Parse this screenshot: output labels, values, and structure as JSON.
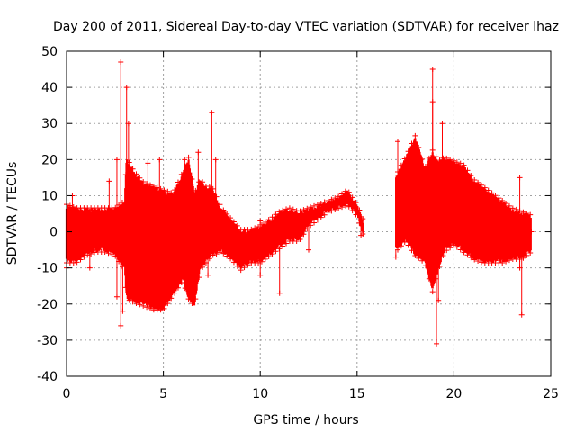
{
  "chart_data": {
    "type": "scatter",
    "title": "Day 200 of 2011, Sidereal Day-to-day VTEC variation (SDTVAR) for receiver lhaz",
    "xlabel": "GPS time / hours",
    "ylabel": "SDTVAR / TECUs",
    "xlim": [
      0,
      25
    ],
    "ylim": [
      -40,
      50
    ],
    "x_ticks": [
      0,
      5,
      10,
      15,
      20,
      25
    ],
    "y_ticks": [
      -40,
      -30,
      -20,
      -10,
      0,
      10,
      20,
      30,
      40,
      50
    ],
    "grid": true,
    "marker": "+",
    "color": "#ff0000",
    "series": [
      {
        "name": "SDTVAR",
        "envelope": {
          "x": [
            0.0,
            0.5,
            1.0,
            1.5,
            2.0,
            2.5,
            3.0,
            3.1,
            3.5,
            4.0,
            4.5,
            5.0,
            5.5,
            6.0,
            6.3,
            6.6,
            6.9,
            7.2,
            7.5,
            8.0,
            8.5,
            9.0,
            9.5,
            10.0,
            10.5,
            11.0,
            11.5,
            12.0,
            12.5,
            13.0,
            13.5,
            14.0,
            14.5,
            15.0,
            15.3,
            17.0,
            17.5,
            18.0,
            18.5,
            18.9,
            19.2,
            19.5,
            20.0,
            20.5,
            21.0,
            21.5,
            22.0,
            22.5,
            23.0,
            23.5,
            24.0
          ],
          "upper": [
            7,
            6,
            6,
            6,
            6,
            6,
            8,
            20,
            16,
            13,
            12,
            11,
            10,
            16,
            20,
            10,
            14,
            12,
            12,
            6,
            3,
            0,
            0,
            1,
            3,
            5,
            6,
            5,
            6,
            7,
            8,
            9,
            11,
            7,
            3,
            15,
            20,
            26,
            17,
            22,
            19,
            20,
            19,
            18,
            14,
            12,
            10,
            8,
            6,
            5,
            4
          ],
          "lower": [
            -8,
            -8,
            -6,
            -5,
            -5,
            -6,
            -10,
            -18,
            -19,
            -20,
            -21,
            -21,
            -17,
            -13,
            -18,
            -20,
            -10,
            -8,
            -6,
            -5,
            -7,
            -10,
            -8,
            -8,
            -6,
            -4,
            -2,
            -2,
            2,
            4,
            6,
            7,
            8,
            5,
            0,
            -5,
            -2,
            -6,
            -8,
            -16,
            -10,
            -5,
            -3,
            -5,
            -7,
            -8,
            -8,
            -8,
            -7,
            -7,
            -5
          ]
        },
        "outliers": [
          {
            "x": 0.3,
            "y": 10
          },
          {
            "x": 0.0,
            "y": -10
          },
          {
            "x": 1.2,
            "y": -10
          },
          {
            "x": 2.2,
            "y": 14
          },
          {
            "x": 2.6,
            "y": 20
          },
          {
            "x": 2.6,
            "y": -18
          },
          {
            "x": 2.8,
            "y": 47
          },
          {
            "x": 2.8,
            "y": -26
          },
          {
            "x": 2.9,
            "y": -22
          },
          {
            "x": 3.1,
            "y": 40
          },
          {
            "x": 3.2,
            "y": 30
          },
          {
            "x": 4.2,
            "y": 19
          },
          {
            "x": 4.8,
            "y": 20
          },
          {
            "x": 6.1,
            "y": 20
          },
          {
            "x": 6.8,
            "y": 22
          },
          {
            "x": 7.0,
            "y": -8
          },
          {
            "x": 7.3,
            "y": -12
          },
          {
            "x": 7.5,
            "y": 33
          },
          {
            "x": 7.7,
            "y": 20
          },
          {
            "x": 10.0,
            "y": 3
          },
          {
            "x": 10.0,
            "y": -12
          },
          {
            "x": 11.0,
            "y": -17
          },
          {
            "x": 12.5,
            "y": -5
          },
          {
            "x": 15.2,
            "y": -1
          },
          {
            "x": 17.0,
            "y": -7
          },
          {
            "x": 17.1,
            "y": 25
          },
          {
            "x": 18.9,
            "y": 45
          },
          {
            "x": 18.9,
            "y": 36
          },
          {
            "x": 19.1,
            "y": -31
          },
          {
            "x": 19.2,
            "y": -19
          },
          {
            "x": 19.4,
            "y": 30
          },
          {
            "x": 23.0,
            "y": 5
          },
          {
            "x": 23.4,
            "y": 15
          },
          {
            "x": 23.5,
            "y": -23
          },
          {
            "x": 23.4,
            "y": -10
          },
          {
            "x": 24.0,
            "y": 0
          }
        ]
      }
    ]
  }
}
